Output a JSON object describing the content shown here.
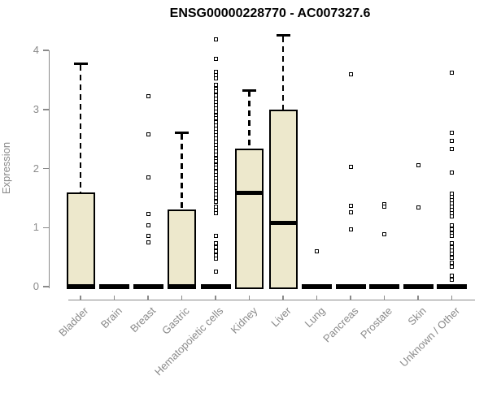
{
  "chart_data": {
    "type": "boxplot",
    "title": "ENSG00000228770 - AC007327.6",
    "ylabel": "Expression",
    "xlabel": "",
    "ylim": [
      0,
      4.3
    ],
    "yticks": [
      0,
      1,
      2,
      3,
      4
    ],
    "grid": false,
    "legend_position": "none",
    "colors": {
      "box_fill": "#ede8cc",
      "box_border": "#000000",
      "median": "#000000",
      "whisker": "#000000",
      "outlier": "#000000",
      "axis": "#8a8a8a",
      "tick_label": "#8a8a8a",
      "title": "#000000",
      "background": "#ffffff"
    },
    "categories": [
      "Bladder",
      "Brain",
      "Breast",
      "Gastric",
      "Hematopoietic cells",
      "Kidney",
      "Liver",
      "Lung",
      "Pancreas",
      "Prostate",
      "Skin",
      "Unknown / Other"
    ],
    "series": [
      {
        "category": "Bladder",
        "low": 0,
        "q1": 0,
        "median": 0,
        "q3": 1.6,
        "high": 3.77,
        "outliers": []
      },
      {
        "category": "Brain",
        "low": 0,
        "q1": 0,
        "median": 0,
        "q3": 0,
        "high": 0,
        "outliers": []
      },
      {
        "category": "Breast",
        "low": 0,
        "q1": 0,
        "median": 0,
        "q3": 0,
        "high": 0,
        "outliers": [
          3.22,
          2.58,
          1.85,
          1.23,
          1.04,
          0.86,
          0.75
        ]
      },
      {
        "category": "Gastric",
        "low": 0,
        "q1": 0,
        "median": 0,
        "q3": 1.31,
        "high": 2.6,
        "outliers": []
      },
      {
        "category": "Hematopoietic cells",
        "low": 0,
        "q1": 0,
        "median": 0,
        "q3": 0,
        "high": 0,
        "outliers": [
          4.18,
          3.85,
          3.64,
          3.58,
          3.52,
          3.41,
          3.35,
          3.3,
          3.24,
          3.18,
          3.13,
          3.07,
          3.02,
          2.96,
          2.9,
          2.85,
          2.79,
          2.73,
          2.68,
          2.62,
          2.57,
          2.51,
          2.45,
          2.4,
          2.34,
          2.29,
          2.23,
          2.17,
          2.12,
          2.06,
          2.01,
          1.95,
          1.89,
          1.84,
          1.78,
          1.72,
          1.67,
          1.61,
          1.56,
          1.5,
          1.44,
          1.36,
          1.3,
          1.24,
          0.86,
          0.73,
          0.66,
          0.6,
          0.53,
          0.47,
          0.25
        ]
      },
      {
        "category": "Kidney",
        "low": 0,
        "q1": 0,
        "median": 1.59,
        "q3": 2.34,
        "high": 3.32,
        "outliers": []
      },
      {
        "category": "Liver",
        "low": 0,
        "q1": 0,
        "median": 1.08,
        "q3": 2.99,
        "high": 4.25,
        "outliers": []
      },
      {
        "category": "Lung",
        "low": 0,
        "q1": 0,
        "median": 0,
        "q3": 0,
        "high": 0,
        "outliers": [
          0.6
        ]
      },
      {
        "category": "Pancreas",
        "low": 0,
        "q1": 0,
        "median": 0,
        "q3": 0,
        "high": 0,
        "outliers": [
          3.59,
          2.03,
          1.37,
          1.26,
          0.97
        ]
      },
      {
        "category": "Prostate",
        "low": 0,
        "q1": 0,
        "median": 0,
        "q3": 0,
        "high": 0,
        "outliers": [
          1.4,
          1.35,
          0.88
        ]
      },
      {
        "category": "Skin",
        "low": 0,
        "q1": 0,
        "median": 0,
        "q3": 0,
        "high": 0,
        "outliers": [
          2.06,
          1.34
        ]
      },
      {
        "category": "Unknown / Other",
        "low": 0,
        "q1": 0,
        "median": 0,
        "q3": 0,
        "high": 0,
        "outliers": [
          3.62,
          2.6,
          2.47,
          2.33,
          1.93,
          1.58,
          1.52,
          1.47,
          1.41,
          1.36,
          1.3,
          1.25,
          1.19,
          1.04,
          0.97,
          0.9,
          0.86,
          0.73,
          0.67,
          0.61,
          0.55,
          0.49,
          0.41,
          0.33,
          0.18,
          0.12
        ]
      }
    ]
  }
}
